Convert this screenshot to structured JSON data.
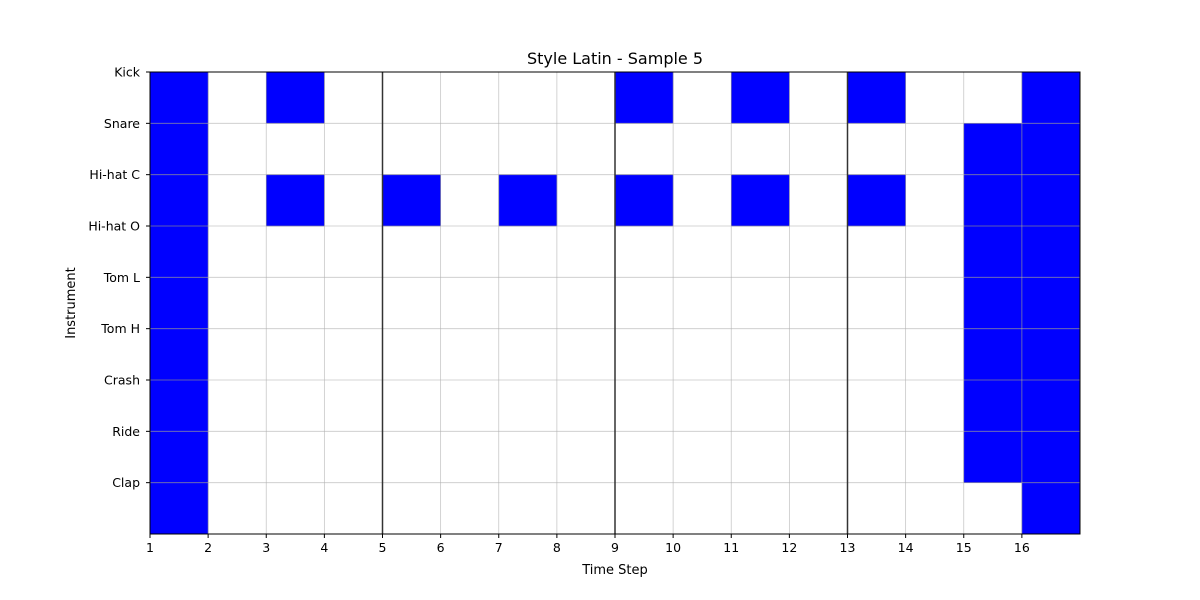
{
  "chart_data": {
    "type": "heatmap",
    "title": "Style Latin - Sample 5",
    "xlabel": "Time Step",
    "ylabel": "Instrument",
    "x_ticks": [
      "1",
      "2",
      "3",
      "4",
      "5",
      "6",
      "7",
      "8",
      "9",
      "10",
      "11",
      "12",
      "13",
      "14",
      "15",
      "16"
    ],
    "instrument_labels": [
      "Kick",
      "Snare",
      "Hi-hat C",
      "Hi-hat O",
      "Tom L",
      "Tom H",
      "Crash",
      "Ride",
      "Clap"
    ],
    "rows": 9,
    "steps": 16,
    "active_color": "#0000ff",
    "grid": true,
    "bar_lines_at_steps": [
      5,
      9,
      13
    ],
    "pattern": [
      [
        1,
        0,
        1,
        0,
        0,
        0,
        0,
        0,
        1,
        0,
        1,
        0,
        1,
        0,
        0,
        1
      ],
      [
        1,
        0,
        0,
        0,
        0,
        0,
        0,
        0,
        0,
        0,
        0,
        0,
        0,
        0,
        1,
        1
      ],
      [
        1,
        0,
        1,
        0,
        1,
        0,
        1,
        0,
        1,
        0,
        1,
        0,
        1,
        0,
        1,
        1
      ],
      [
        1,
        0,
        0,
        0,
        0,
        0,
        0,
        0,
        0,
        0,
        0,
        0,
        0,
        0,
        1,
        1
      ],
      [
        1,
        0,
        0,
        0,
        0,
        0,
        0,
        0,
        0,
        0,
        0,
        0,
        0,
        0,
        1,
        1
      ],
      [
        1,
        0,
        0,
        0,
        0,
        0,
        0,
        0,
        0,
        0,
        0,
        0,
        0,
        0,
        1,
        1
      ],
      [
        1,
        0,
        0,
        0,
        0,
        0,
        0,
        0,
        0,
        0,
        0,
        0,
        0,
        0,
        1,
        1
      ],
      [
        1,
        0,
        0,
        0,
        0,
        0,
        0,
        0,
        0,
        0,
        0,
        0,
        0,
        0,
        1,
        1
      ],
      [
        1,
        0,
        0,
        0,
        0,
        0,
        0,
        0,
        0,
        0,
        0,
        0,
        0,
        0,
        0,
        1
      ]
    ]
  }
}
